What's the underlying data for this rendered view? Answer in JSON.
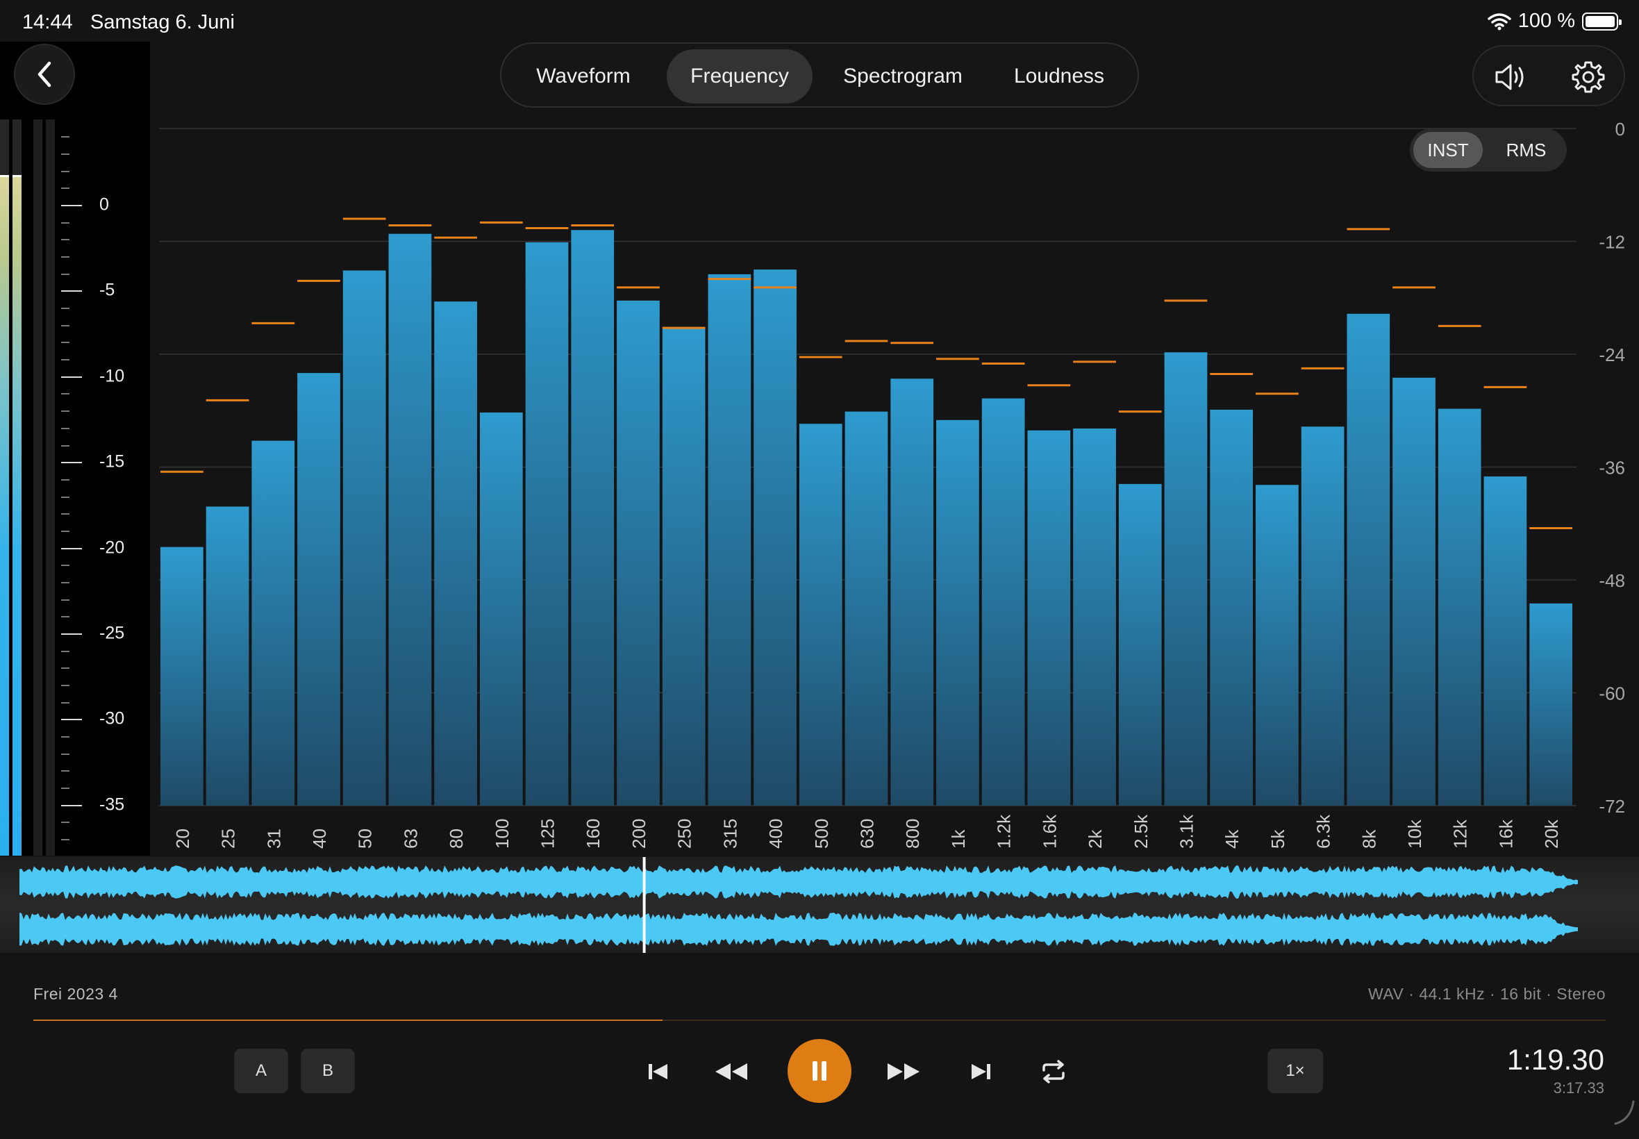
{
  "status_bar": {
    "time": "14:44",
    "date": "Samstag 6. Juni",
    "battery": "100 %"
  },
  "tabs": [
    {
      "label": "Waveform",
      "active": false
    },
    {
      "label": "Frequency",
      "active": true
    },
    {
      "label": "Spectrogram",
      "active": false
    },
    {
      "label": "Loudness",
      "active": false
    }
  ],
  "mode_toggle": {
    "options": [
      "INST",
      "RMS"
    ],
    "selected": "INST"
  },
  "meter_scale": {
    "labels": [
      "0",
      "-5",
      "-10",
      "-15",
      "-20",
      "-25",
      "-30",
      "-35"
    ]
  },
  "icons": {
    "back": "chevron-left-icon",
    "volume": "speaker-icon",
    "settings": "gear-icon"
  },
  "colors": {
    "bar_top": "#2e9bcf",
    "bar_bottom": "#1f4a66",
    "peak": "#e8821a",
    "waveform": "#4cc8f5",
    "accent": "#de7d14"
  },
  "chart_data": {
    "type": "bar",
    "categories": [
      "20",
      "25",
      "31",
      "40",
      "50",
      "63",
      "80",
      "100",
      "125",
      "160",
      "200",
      "250",
      "315",
      "400",
      "500",
      "630",
      "800",
      "1k",
      "1.2k",
      "1.6k",
      "2k",
      "2.5k",
      "3.1k",
      "4k",
      "5k",
      "6.3k",
      "8k",
      "10k",
      "12k",
      "16k",
      "20k"
    ],
    "series": [
      {
        "values": [
          -44.5,
          -40.2,
          -33.2,
          -26.0,
          -15.1,
          -11.2,
          -18.4,
          -30.2,
          -12.1,
          -10.8,
          -18.3,
          -21.1,
          -15.5,
          -15.0,
          -31.4,
          -30.1,
          -26.6,
          -31.0,
          -28.7,
          -32.1,
          -31.9,
          -37.8,
          -23.8,
          -29.9,
          -37.9,
          -31.7,
          -19.7,
          -26.5,
          -29.8,
          -37.0,
          -50.5
        ]
      },
      {
        "values": [
          -36.5,
          -28.9,
          -20.7,
          -16.2,
          -9.6,
          -10.3,
          -11.6,
          -10.0,
          -10.6,
          -10.3,
          -16.9,
          -21.2,
          -16.0,
          -16.9,
          -24.3,
          -22.6,
          -22.8,
          -24.5,
          -25.0,
          -27.3,
          -24.8,
          -30.1,
          -18.3,
          -26.1,
          -28.2,
          -25.5,
          -10.7,
          -16.9,
          -21.0,
          -27.5,
          -42.5
        ]
      }
    ],
    "ylim": [
      -72,
      0
    ],
    "y_ticks": [
      "0",
      "-12",
      "-24",
      "-36",
      "-48",
      "-60",
      "-72"
    ],
    "grid": true
  },
  "track": {
    "name": "Frei 2023 4",
    "format": "WAV · 44.1 kHz · 16 bit · Stereo",
    "progress": 0.4
  },
  "transport": {
    "a_label": "A",
    "b_label": "B",
    "speed": "1×",
    "current_time": "1:19.30",
    "total_time": "3:17.33"
  }
}
